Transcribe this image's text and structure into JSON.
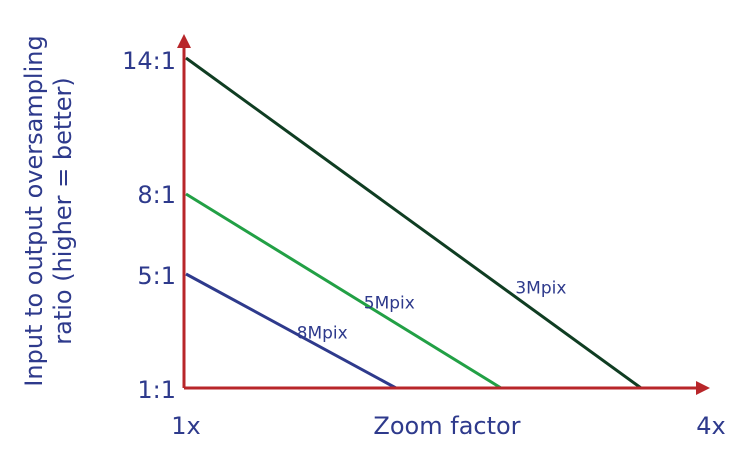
{
  "chart_data": {
    "type": "line",
    "title": "",
    "xlabel": "Zoom factor",
    "ylabel_lines": [
      "Input to output oversampling",
      "ratio (higher = better)"
    ],
    "x_ticks": [
      "1x",
      "4x"
    ],
    "y_ticks": [
      "14:1",
      "8:1",
      "5:1",
      "1:1"
    ],
    "series": [
      {
        "name": "3Mpix",
        "color": "#0f3d22",
        "points": [
          {
            "x": "1x",
            "y": "14:1"
          },
          {
            "x": 3.6,
            "y": "1:1"
          }
        ]
      },
      {
        "name": "5Mpix",
        "color": "#22a045",
        "points": [
          {
            "x": "1x",
            "y": "8:1"
          },
          {
            "x": 2.8,
            "y": "1:1"
          }
        ]
      },
      {
        "name": "8Mpix",
        "color": "#2e3a8c",
        "points": [
          {
            "x": "1x",
            "y": "5:1"
          },
          {
            "x": 2.2,
            "y": "1:1"
          }
        ]
      }
    ],
    "axis_color": "#b8262a",
    "text_color": "#2e3a8c"
  }
}
